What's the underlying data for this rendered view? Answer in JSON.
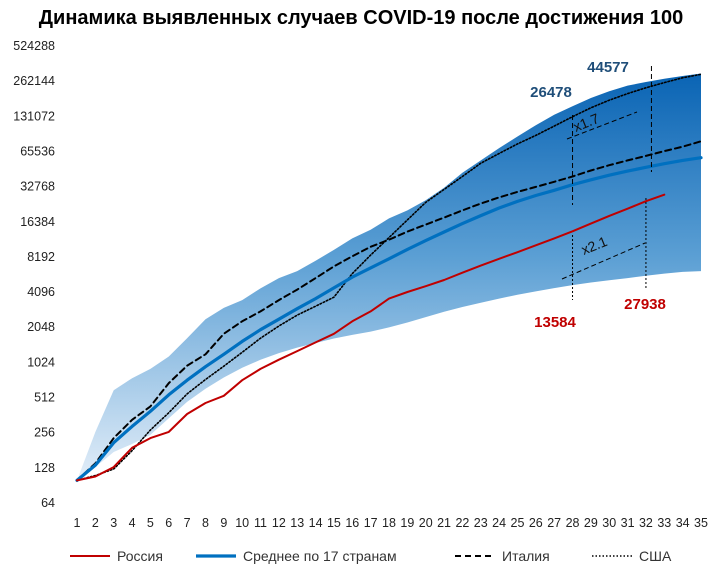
{
  "chart_data": {
    "type": "line",
    "title": "Динамика выявленных случаев COVID-19 после достижения 100",
    "y_scale": "log2",
    "ylim": [
      64,
      524288
    ],
    "y_ticks": [
      "64",
      "128",
      "256",
      "512",
      "1024",
      "2048",
      "4096",
      "8192",
      "16384",
      "32768",
      "65536",
      "131072",
      "262144",
      "524288"
    ],
    "xlim": [
      1,
      35
    ],
    "x_ticks": [
      "1",
      "2",
      "3",
      "4",
      "5",
      "6",
      "7",
      "8",
      "9",
      "10",
      "11",
      "12",
      "13",
      "14",
      "15",
      "16",
      "17",
      "18",
      "19",
      "20",
      "21",
      "22",
      "23",
      "24",
      "25",
      "26",
      "27",
      "28",
      "29",
      "30",
      "31",
      "32",
      "33",
      "34",
      "35"
    ],
    "x": [
      1,
      2,
      3,
      4,
      5,
      6,
      7,
      8,
      9,
      10,
      11,
      12,
      13,
      14,
      15,
      16,
      17,
      18,
      19,
      20,
      21,
      22,
      23,
      24,
      25,
      26,
      27,
      28,
      29,
      30,
      31,
      32,
      33,
      34,
      35
    ],
    "band": {
      "upper": [
        100,
        260,
        590,
        750,
        900,
        1150,
        1650,
        2400,
        3000,
        3500,
        4400,
        5400,
        6200,
        7600,
        9400,
        11800,
        14000,
        17500,
        20500,
        25000,
        32000,
        43000,
        55000,
        70000,
        88000,
        110000,
        135000,
        160000,
        188000,
        215000,
        240000,
        258000,
        275000,
        290000,
        305000
      ],
      "lower": [
        100,
        130,
        175,
        205,
        245,
        340,
        470,
        610,
        760,
        920,
        1080,
        1230,
        1370,
        1500,
        1640,
        1760,
        1880,
        2040,
        2250,
        2500,
        2780,
        3050,
        3320,
        3600,
        3880,
        4150,
        4430,
        4700,
        4950,
        5180,
        5400,
        5650,
        5900,
        6100,
        6200
      ]
    },
    "series": [
      {
        "name": "Россия",
        "style": "solid-red",
        "color": "#c00000",
        "values": [
          100,
          108,
          130,
          190,
          230,
          260,
          370,
          460,
          530,
          720,
          900,
          1080,
          1280,
          1520,
          1800,
          2300,
          2800,
          3600,
          4100,
          4600,
          5200,
          6000,
          6900,
          7900,
          9000,
          10300,
          11800,
          13584,
          15800,
          18400,
          21200,
          24600,
          27938,
          null,
          null
        ]
      },
      {
        "name": "Среднее по 17 странам",
        "style": "solid-blue-thick",
        "color": "#0070c0",
        "values": [
          100,
          135,
          210,
          290,
          390,
          540,
          720,
          940,
          1200,
          1550,
          1950,
          2400,
          2950,
          3600,
          4450,
          5500,
          6600,
          7900,
          9500,
          11300,
          13400,
          15800,
          18500,
          21500,
          24500,
          27500,
          30500,
          34000,
          37500,
          41000,
          44500,
          48000,
          51500,
          55000,
          58000
        ]
      },
      {
        "name": "Италия",
        "style": "dashed-black",
        "color": "#000000",
        "values": [
          100,
          140,
          230,
          330,
          430,
          680,
          960,
          1200,
          1800,
          2300,
          2800,
          3500,
          4300,
          5400,
          6800,
          8300,
          10000,
          11500,
          13500,
          15500,
          17800,
          20500,
          23500,
          26500,
          29500,
          32600,
          36000,
          40000,
          45000,
          50000,
          55000,
          60000,
          66000,
          72000,
          80000
        ]
      },
      {
        "name": "США",
        "style": "dotted-black",
        "color": "#000000",
        "values": [
          100,
          110,
          125,
          180,
          270,
          380,
          550,
          730,
          950,
          1250,
          1650,
          2100,
          2600,
          3100,
          3700,
          5900,
          8500,
          12000,
          17000,
          24000,
          31000,
          40000,
          52000,
          63000,
          76000,
          90000,
          108000,
          130000,
          155000,
          180000,
          205000,
          230000,
          255000,
          280000,
          300000
        ]
      }
    ],
    "legend_position": "bottom",
    "annotations": [
      {
        "label": "44577",
        "color": "#1f4e79"
      },
      {
        "label": "26478",
        "color": "#1f4e79"
      },
      {
        "label": "13584",
        "color": "#c00000"
      },
      {
        "label": "27938",
        "color": "#c00000"
      },
      {
        "label": "x1.7",
        "color": "#111111"
      },
      {
        "label": "x2.1",
        "color": "#111111"
      }
    ]
  }
}
